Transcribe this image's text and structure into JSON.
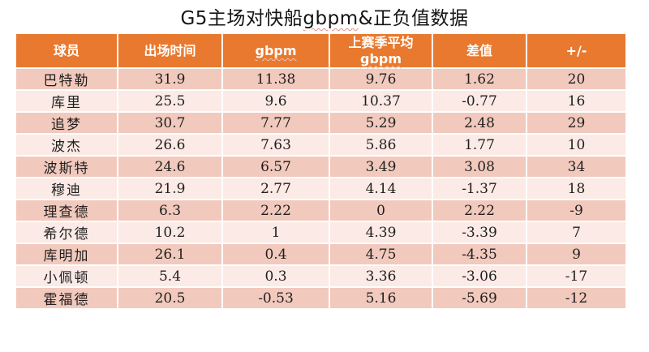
{
  "title": {
    "part1": "G5主场对快船",
    "part2": "gbpm",
    "part3": "&正负值数据"
  },
  "header": {
    "player": "球员",
    "minutes": "出场时间",
    "gbpm": "gbpm",
    "last_season_avg_line1": "上赛季平均",
    "last_season_avg_line2": "gbpm",
    "diff": "差值",
    "plus_minus": "+/-"
  },
  "colors": {
    "header_bg": "#e8792f",
    "header_text": "#ffffff",
    "row_odd_bg": "#f2c9bd",
    "row_even_bg": "#fbeae5",
    "title_text": "#141414",
    "spellcheck_squiggle": "#e08f8a"
  },
  "chart_data": {
    "type": "table",
    "title": "G5主场对快船gbpm&正负值数据",
    "columns": [
      "球员",
      "出场时间",
      "gbpm",
      "上赛季平均gbpm",
      "差值",
      "+/-"
    ],
    "rows": [
      [
        "巴特勒",
        "31.9",
        "11.38",
        "9.76",
        "1.62",
        "20"
      ],
      [
        "库里",
        "25.5",
        "9.6",
        "10.37",
        "-0.77",
        "16"
      ],
      [
        "追梦",
        "30.7",
        "7.77",
        "5.29",
        "2.48",
        "29"
      ],
      [
        "波杰",
        "26.6",
        "7.63",
        "5.86",
        "1.77",
        "10"
      ],
      [
        "波斯特",
        "24.6",
        "6.57",
        "3.49",
        "3.08",
        "34"
      ],
      [
        "穆迪",
        "21.9",
        "2.77",
        "4.14",
        "-1.37",
        "18"
      ],
      [
        "理查德",
        "6.3",
        "2.22",
        "0",
        "2.22",
        "-9"
      ],
      [
        "希尔德",
        "10.2",
        "1",
        "4.39",
        "-3.39",
        "7"
      ],
      [
        "库明加",
        "26.1",
        "0.4",
        "4.75",
        "-4.35",
        "9"
      ],
      [
        "小佩顿",
        "5.4",
        "0.3",
        "3.36",
        "-3.06",
        "-17"
      ],
      [
        "霍福德",
        "20.5",
        "-0.53",
        "5.16",
        "-5.69",
        "-12"
      ]
    ]
  }
}
